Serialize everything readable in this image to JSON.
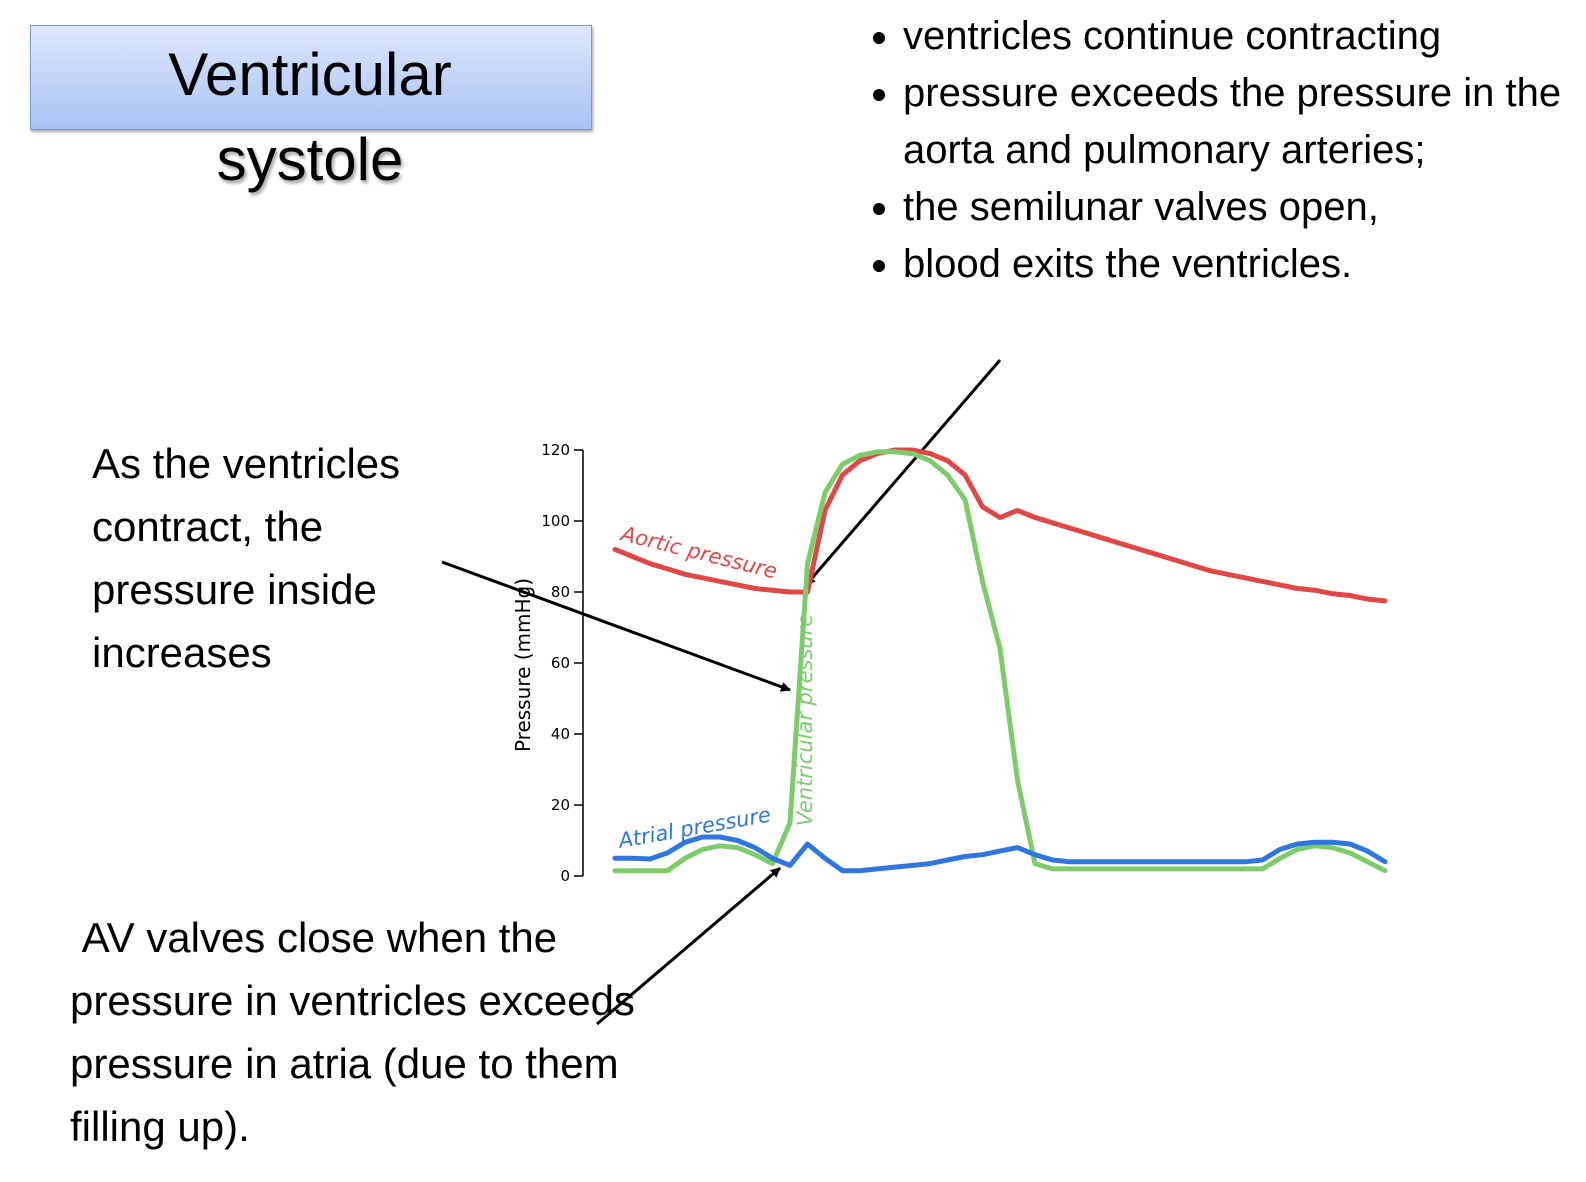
{
  "slide": {
    "title": [
      "Ventricular",
      "systole"
    ],
    "bullets": [
      "ventricles continue contracting",
      "pressure exceeds the pressure in the aorta and pulmonary arteries;",
      "the semilunar valves open,",
      "blood exits the ventricles."
    ],
    "notes": [
      "As the ventricles contract, the pressure inside increases",
      " AV valves close when the pressure in ventricles exceeds pressure in atria (due to them filling up)."
    ]
  },
  "chart_data": {
    "type": "line",
    "ylabel": "Pressure (mmHg)",
    "categories": [
      null,
      null,
      null,
      null,
      null,
      null,
      null,
      null,
      null,
      null,
      null,
      null,
      null,
      null,
      null,
      null,
      null,
      null,
      null,
      null,
      null,
      null,
      null,
      null,
      null,
      null,
      null,
      null,
      null,
      null,
      null,
      null,
      null,
      null,
      null,
      null,
      null,
      null,
      null,
      null,
      null,
      null,
      null,
      null,
      null
    ],
    "series": [
      {
        "name": "Aortic pressure",
        "color": "#e04848",
        "values": [
          92,
          90,
          88,
          86.5,
          85,
          84,
          83,
          82,
          81,
          80.5,
          80,
          80,
          103,
          113,
          117,
          119,
          120,
          120,
          119,
          117,
          113,
          104,
          101,
          103,
          101,
          99.5,
          98,
          96.5,
          95,
          93.5,
          92,
          90.5,
          89,
          87.5,
          86,
          85,
          84,
          83,
          82,
          81,
          80.5,
          79.5,
          79,
          78,
          77.5
        ]
      },
      {
        "name": "Ventricular pressure",
        "color": "#7ccc6c",
        "values": [
          1.5,
          1.5,
          1.5,
          1.5,
          5,
          7.5,
          8.5,
          8,
          6,
          3.5,
          15,
          88,
          108,
          116,
          118.5,
          119.5,
          119.5,
          119,
          117,
          113,
          106,
          83,
          64,
          27,
          3.5,
          2,
          2,
          2,
          2,
          2,
          2,
          2,
          2,
          2,
          2,
          2,
          2,
          2,
          5,
          7.5,
          8.5,
          8,
          6.5,
          4,
          1.5
        ]
      },
      {
        "name": "Atrial pressure",
        "color": "#2f76e0",
        "values": [
          5,
          5,
          4.8,
          6.5,
          9.5,
          11,
          11,
          10,
          8,
          5,
          3,
          9,
          5,
          1.5,
          1.5,
          2,
          2.5,
          3,
          3.5,
          4.5,
          5.5,
          6,
          7,
          8,
          6,
          4.5,
          4,
          4,
          4,
          4,
          4,
          4,
          4,
          4,
          4,
          4,
          4,
          4.5,
          7.5,
          9,
          9.5,
          9.5,
          9,
          7,
          4
        ]
      }
    ],
    "ylim": [
      0,
      120
    ],
    "yticks": [
      0,
      20,
      40,
      60,
      80,
      100,
      120
    ]
  }
}
